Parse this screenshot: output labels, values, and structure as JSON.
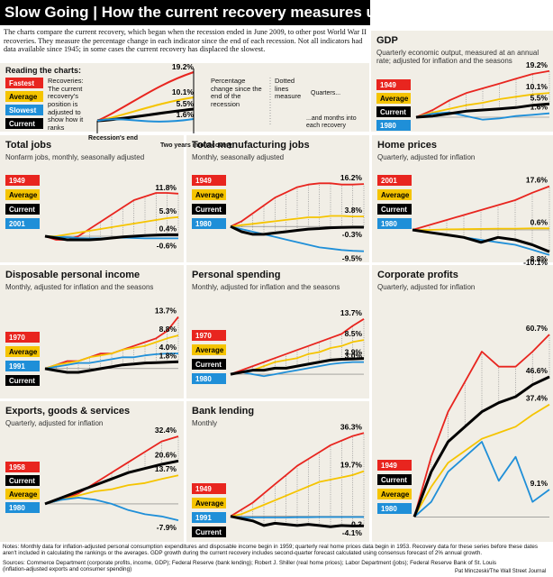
{
  "header": {
    "title": "Slow Going | How the current recovery measures up",
    "intro": "The charts compare the current recovery, which began when the recession ended in June 2009, to other post World War II recoveries. They measure the percentage change in each indicator since the end of each recession. Not all indicators had data available since 1945; in some cases the current recovery has displaced the slowest."
  },
  "reading": {
    "title": "Reading the charts:",
    "legend": [
      "Fastest",
      "Average",
      "Slowest",
      "Current"
    ],
    "recoveries": "Recoveries: The current recovery's position is adjusted to show how it ranks",
    "sample_labels": [
      "19.2%",
      "10.1%",
      "5.5%",
      "1.6%"
    ],
    "start_label": "Recession's end",
    "end_label": "Two years into recovery",
    "percent_note": "Percentage change since the end of the recession",
    "dotted_note": "Dotted lines measure",
    "quarters_note": "Quarters...",
    "months_note": "...and months into each recovery"
  },
  "chart_data": [
    {
      "type": "line",
      "title": "GDP",
      "subtitle": "Quarterly economic output, measured at an annual rate; adjusted for inflation and the seasons",
      "ylim": [
        -3,
        21
      ],
      "series": [
        {
          "name": "1949",
          "color": "#e8251f",
          "values": [
            0,
            3,
            7,
            10,
            12,
            14,
            16,
            18,
            19.2
          ],
          "end_label": "19.2%"
        },
        {
          "name": "Average",
          "color": "#f5c400",
          "values": [
            0,
            2,
            3.5,
            5,
            6,
            7.5,
            8.5,
            9.5,
            10.1
          ],
          "end_label": "10.1%"
        },
        {
          "name": "Current",
          "color": "#000000",
          "values": [
            0,
            0.5,
            1.5,
            2.5,
            3,
            3.5,
            4,
            5,
            5.5
          ],
          "end_label": "5.5%"
        },
        {
          "name": "1980",
          "color": "#1f8fd8",
          "values": [
            0,
            1.5,
            2,
            0.5,
            -1,
            -0.5,
            0.5,
            1,
            1.6
          ],
          "end_label": "1.6%"
        }
      ]
    },
    {
      "type": "line",
      "title": "Total jobs",
      "subtitle": "Nonfarm jobs, monthly, seasonally adjusted",
      "ylim": [
        -3,
        14
      ],
      "series": [
        {
          "name": "1949",
          "color": "#e8251f",
          "values": [
            0,
            -1,
            -1,
            0,
            2,
            4,
            6,
            8,
            10,
            11,
            12,
            12,
            11.8
          ],
          "end_label": "11.8%"
        },
        {
          "name": "Average",
          "color": "#f5c400",
          "values": [
            0,
            0,
            0.5,
            1,
            1.5,
            2,
            2.5,
            3,
            3.5,
            4,
            4.5,
            5,
            5.3
          ],
          "end_label": "5.3%"
        },
        {
          "name": "Current",
          "color": "#000000",
          "values": [
            0,
            -0.5,
            -1,
            -1,
            -1,
            -0.8,
            -0.5,
            -0.2,
            0,
            0.2,
            0.3,
            0.4,
            0.4
          ],
          "end_label": "0.4%"
        },
        {
          "name": "2001",
          "color": "#1f8fd8",
          "values": [
            0,
            -0.2,
            -0.3,
            -0.5,
            -0.6,
            -0.6,
            -0.5,
            -0.4,
            -0.5,
            -0.6,
            -0.6,
            -0.6,
            -0.6
          ],
          "end_label": "-0.6%"
        }
      ]
    },
    {
      "type": "line",
      "title": "Total manufacturing jobs",
      "subtitle": "Monthly, seasonally adjusted",
      "ylim": [
        -12,
        19
      ],
      "series": [
        {
          "name": "1949",
          "color": "#e8251f",
          "values": [
            0,
            2,
            5,
            8,
            11,
            13,
            15,
            16,
            16.5,
            16.5,
            16,
            16,
            16.2
          ],
          "end_label": "16.2%"
        },
        {
          "name": "Average",
          "color": "#f5c400",
          "values": [
            0,
            0.5,
            1,
            1.5,
            2,
            2.5,
            3,
            3.5,
            3.5,
            4,
            4,
            3.8,
            3.8
          ],
          "end_label": "3.8%"
        },
        {
          "name": "Current",
          "color": "#000000",
          "values": [
            0,
            -2,
            -3,
            -3,
            -2.5,
            -2,
            -1.5,
            -1,
            -0.8,
            -0.5,
            -0.4,
            -0.3,
            -0.3
          ],
          "end_label": "-0.3%"
        },
        {
          "name": "1980",
          "color": "#1f8fd8",
          "values": [
            0,
            -1,
            -2,
            -3,
            -4,
            -5,
            -6,
            -7,
            -8,
            -8.5,
            -9,
            -9.3,
            -9.5
          ],
          "end_label": "-9.5%"
        }
      ]
    },
    {
      "type": "line",
      "title": "Home prices",
      "subtitle": "Quarterly, adjusted for inflation",
      "ylim": [
        -12,
        20
      ],
      "series": [
        {
          "name": "2001",
          "color": "#e8251f",
          "values": [
            0,
            2,
            4,
            6,
            8,
            10,
            12,
            15,
            17.6
          ],
          "end_label": "17.6%"
        },
        {
          "name": "Average",
          "color": "#f5c400",
          "values": [
            0,
            0,
            0.2,
            0.3,
            0.4,
            0.5,
            0.5,
            0.6,
            0.6
          ],
          "end_label": "0.6%"
        },
        {
          "name": "Current",
          "color": "#000000",
          "values": [
            0,
            -1,
            -2,
            -3,
            -5,
            -3,
            -4,
            -6,
            -8.8
          ],
          "end_label": "-8.8%"
        },
        {
          "name": "1980",
          "color": "#1f8fd8",
          "values": [
            0,
            -1,
            -2,
            -3,
            -4,
            -5,
            -6,
            -8,
            -10.1
          ],
          "end_label": "-10.1%"
        }
      ]
    },
    {
      "type": "line",
      "title": "Disposable personal income",
      "subtitle": "Monthly, adjusted for inflation and the seasons",
      "ylim": [
        -6,
        15
      ],
      "series": [
        {
          "name": "1970",
          "color": "#e8251f",
          "values": [
            0,
            1,
            2,
            2,
            3,
            4,
            4,
            5,
            6,
            7,
            8,
            10,
            13.7
          ],
          "end_label": "13.7%"
        },
        {
          "name": "Average",
          "color": "#f5c400",
          "values": [
            0,
            1,
            1.5,
            2,
            3,
            3.5,
            4,
            5,
            5.5,
            6,
            7,
            8,
            8.8
          ],
          "end_label": "8.8%"
        },
        {
          "name": "1991",
          "color": "#1f8fd8",
          "values": [
            0,
            0.5,
            1,
            1.5,
            1.5,
            2,
            2.5,
            3,
            3,
            3.5,
            3.8,
            4,
            4.0
          ],
          "end_label": "4.0%"
        },
        {
          "name": "Current",
          "color": "#000000",
          "values": [
            0,
            -0.5,
            -1,
            -1,
            -0.5,
            0,
            0.5,
            1,
            1.2,
            1.5,
            1.6,
            1.7,
            1.8
          ],
          "end_label": "1.8%"
        }
      ]
    },
    {
      "type": "line",
      "title": "Personal spending",
      "subtitle": "Monthly, adjusted for inflation and the seasons",
      "ylim": [
        -2,
        15
      ],
      "series": [
        {
          "name": "1970",
          "color": "#e8251f",
          "values": [
            0,
            1,
            2,
            3,
            4,
            5,
            6,
            7,
            8,
            9,
            10,
            12,
            13.7
          ],
          "end_label": "13.7%"
        },
        {
          "name": "Average",
          "color": "#f5c400",
          "values": [
            0,
            0.5,
            1,
            2,
            3,
            3.5,
            4,
            5,
            5.5,
            6.5,
            7,
            8,
            8.5
          ],
          "end_label": "8.5%"
        },
        {
          "name": "Current",
          "color": "#000000",
          "values": [
            0,
            0.5,
            1,
            1,
            1.5,
            1.5,
            2,
            2.5,
            3,
            3.5,
            3.7,
            3.8,
            3.9
          ],
          "end_label": "3.9%"
        },
        {
          "name": "1980",
          "color": "#1f8fd8",
          "values": [
            0,
            0.5,
            0,
            -0.5,
            0,
            0.5,
            1,
            1.5,
            2,
            2.5,
            2.8,
            3,
            3.0
          ],
          "end_label": "3.0%"
        }
      ]
    },
    {
      "type": "line",
      "title": "Corporate profits",
      "subtitle": "Quarterly, adjusted for inflation",
      "ylim": [
        -5,
        64
      ],
      "series": [
        {
          "name": "1949",
          "color": "#e8251f",
          "values": [
            0,
            20,
            35,
            45,
            55,
            50,
            50,
            55,
            60.7
          ],
          "end_label": "60.7%"
        },
        {
          "name": "Current",
          "color": "#000000",
          "values": [
            0,
            15,
            25,
            30,
            35,
            38,
            40,
            44,
            46.6
          ],
          "end_label": "46.6%"
        },
        {
          "name": "Average",
          "color": "#f5c400",
          "values": [
            0,
            10,
            18,
            22,
            26,
            28,
            30,
            34,
            37.4
          ],
          "end_label": "37.4%"
        },
        {
          "name": "1980",
          "color": "#1f8fd8",
          "values": [
            0,
            5,
            15,
            20,
            25,
            12,
            20,
            5,
            9.1
          ],
          "end_label": "9.1%"
        }
      ]
    },
    {
      "type": "line",
      "title": "Exports, goods & services",
      "subtitle": "Quarterly, adjusted for inflation",
      "ylim": [
        -10,
        35
      ],
      "series": [
        {
          "name": "1958",
          "color": "#e8251f",
          "values": [
            0,
            2,
            5,
            10,
            15,
            20,
            25,
            30,
            32.4
          ],
          "end_label": "32.4%"
        },
        {
          "name": "Current",
          "color": "#000000",
          "values": [
            0,
            3,
            6,
            9,
            12,
            15,
            17,
            19,
            20.6
          ],
          "end_label": "20.6%"
        },
        {
          "name": "Average",
          "color": "#f5c400",
          "values": [
            0,
            2,
            4,
            6,
            7,
            9,
            10,
            12,
            13.7
          ],
          "end_label": "13.7%"
        },
        {
          "name": "1980",
          "color": "#1f8fd8",
          "values": [
            0,
            2,
            3,
            2,
            0,
            -3,
            -5,
            -6,
            -7.9
          ],
          "end_label": "-7.9%"
        }
      ]
    },
    {
      "type": "line",
      "title": "Bank lending",
      "subtitle": "Monthly",
      "ylim": [
        -6,
        38
      ],
      "series": [
        {
          "name": "1949",
          "color": "#e8251f",
          "values": [
            0,
            3,
            6,
            10,
            14,
            18,
            22,
            25,
            28,
            31,
            33,
            35,
            36.3
          ],
          "end_label": "36.3%"
        },
        {
          "name": "Average",
          "color": "#f5c400",
          "values": [
            0,
            1,
            3,
            5,
            7,
            9,
            11,
            13,
            15,
            16,
            17,
            18,
            19.7
          ],
          "end_label": "19.7%"
        },
        {
          "name": "1991",
          "color": "#1f8fd8",
          "values": [
            0,
            -0.5,
            -0.5,
            -0.5,
            -0.5,
            -0.5,
            -0.4,
            -0.4,
            -0.3,
            -0.3,
            -0.3,
            -0.3,
            -0.3
          ],
          "end_label": "-0.3"
        },
        {
          "name": "Current",
          "color": "#000000",
          "values": [
            0,
            -1,
            -2,
            -4,
            -3,
            -3.5,
            -4,
            -3.5,
            -4,
            -4.5,
            -4,
            -4.2,
            -4.1
          ],
          "end_label": "-4.1%"
        }
      ]
    }
  ],
  "notes": "Notes: Monthly data for inflation-adjusted personal consumption expenditures and disposable income begin in 1959; quarterly real home prices data begin in 1953. Recovery data for these series before these dates aren't included in calculating the rankings or the averages. GDP growth during the current recovery includes second-quarter forecast calculated using consensus forecast of 2% annual growth.",
  "sources": "Sources: Commerce Department (corporate profits, income, GDP); Federal Reserve (bank lending); Robert J. Shiller (real home prices); Labor Department (jobs); Federal Reserve Bank of St. Louis (inflation-adjusted exports and consumer spending)",
  "credit": "Pat Minczeski/The Wall Street Journal"
}
